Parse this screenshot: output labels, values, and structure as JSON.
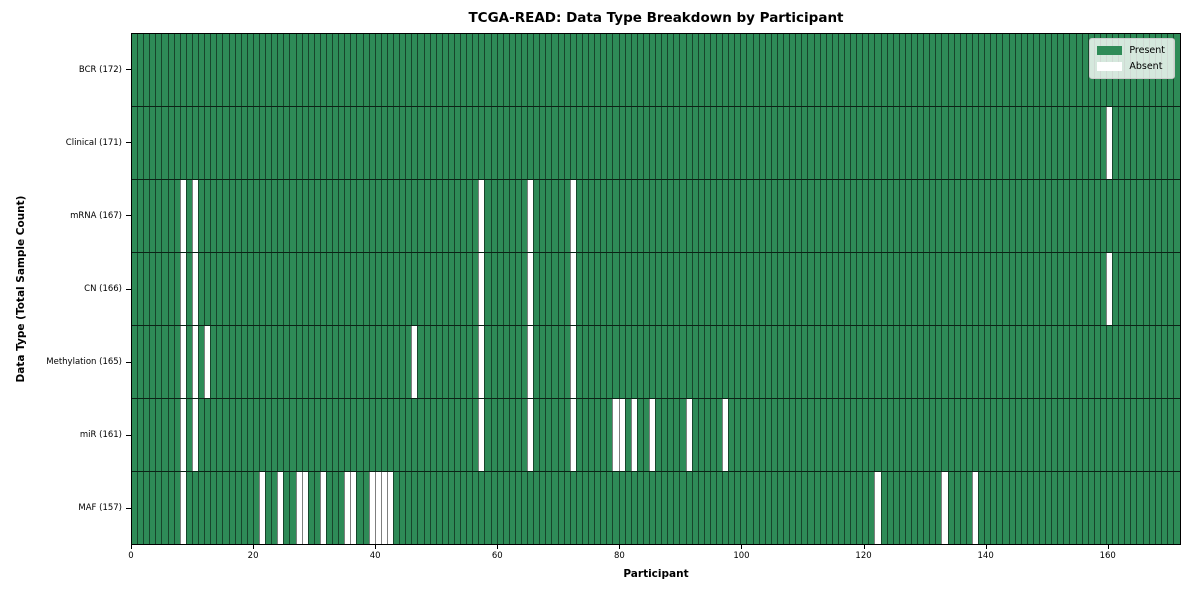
{
  "title": "TCGA-READ: Data Type Breakdown by Participant",
  "xlabel": "Participant",
  "ylabel": "Data Type (Total Sample Count)",
  "legend": {
    "present_label": "Present",
    "absent_label": "Absent"
  },
  "colors": {
    "present": "#2e8b57",
    "absent": "#ffffff",
    "cell_edge": "rgba(0,0,0,0.5)",
    "row_divider": "rgba(0,0,0,0.75)",
    "plot_border": "#000000"
  },
  "chart_data": {
    "type": "heatmap",
    "title": "TCGA-READ: Data Type Breakdown by Participant",
    "xlabel": "Participant",
    "ylabel": "Data Type (Total Sample Count)",
    "legend_entries": [
      "Present",
      "Absent"
    ],
    "legend_position": "upper right",
    "grid": true,
    "total_participants": 172,
    "xlim": [
      0,
      172
    ],
    "x_ticks": [
      0,
      20,
      40,
      60,
      80,
      100,
      120,
      140,
      160
    ],
    "rows": [
      {
        "label": "BCR (172)",
        "present_count": 172,
        "absent_participants": []
      },
      {
        "label": "Clinical (171)",
        "present_count": 171,
        "absent_participants": [
          160
        ]
      },
      {
        "label": "mRNA (167)",
        "present_count": 167,
        "absent_participants": [
          8,
          10,
          57,
          65,
          72
        ]
      },
      {
        "label": "CN (166)",
        "present_count": 166,
        "absent_participants": [
          8,
          10,
          57,
          65,
          72,
          160
        ]
      },
      {
        "label": "Methylation (165)",
        "present_count": 165,
        "absent_participants": [
          8,
          10,
          12,
          46,
          57,
          65,
          72
        ]
      },
      {
        "label": "miR (161)",
        "present_count": 161,
        "absent_participants": [
          8,
          10,
          57,
          65,
          72,
          79,
          80,
          82,
          85,
          91,
          97
        ]
      },
      {
        "label": "MAF (157)",
        "present_count": 157,
        "absent_participants": [
          8,
          21,
          24,
          27,
          28,
          31,
          35,
          36,
          39,
          40,
          41,
          42,
          122,
          133,
          138
        ]
      }
    ]
  }
}
